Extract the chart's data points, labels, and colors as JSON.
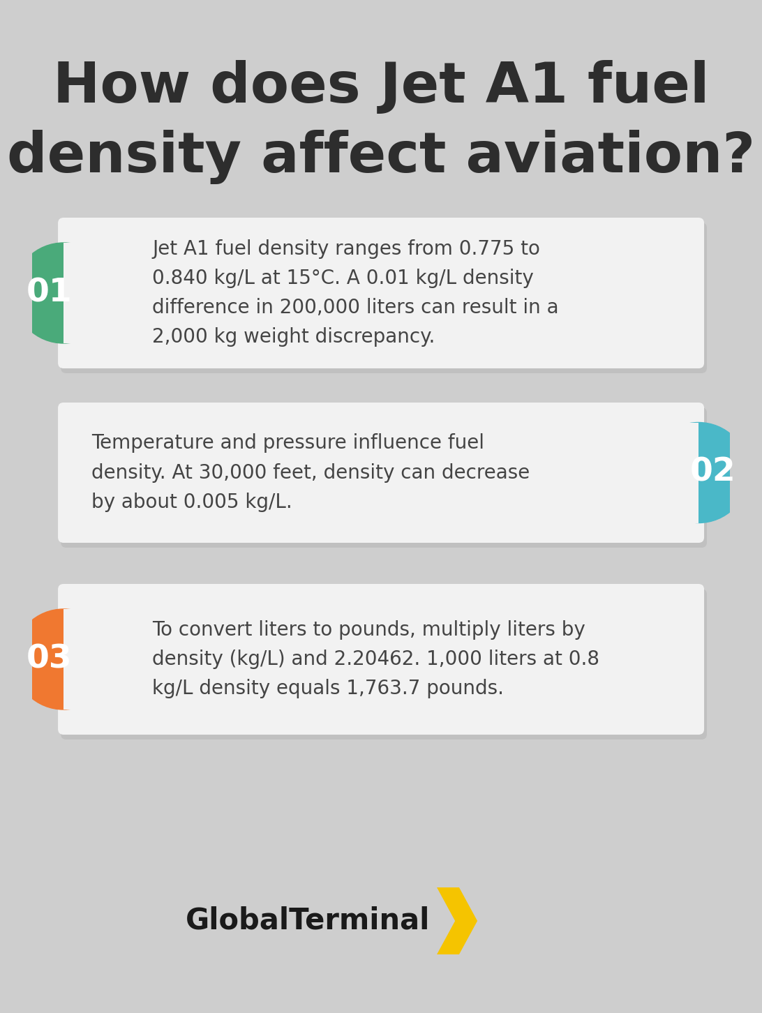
{
  "title_line1": "How does Jet A1 fuel",
  "title_line2": "density affect aviation?",
  "title_color": "#2d2d2d",
  "background_color": "#cecece",
  "card_color": "#f2f2f2",
  "card_shadow_color": "#b0b0b0",
  "items": [
    {
      "number": "01",
      "badge_color": "#4aaa7a",
      "badge_side": "left",
      "text": "Jet A1 fuel density ranges from 0.775 to\n0.840 kg/L at 15°C. A 0.01 kg/L density\ndifference in 200,000 liters can result in a\n2,000 kg weight discrepancy."
    },
    {
      "number": "02",
      "badge_color": "#4ab8c8",
      "badge_side": "right",
      "text": "Temperature and pressure influence fuel\ndensity. At 30,000 feet, density can decrease\nby about 0.005 kg/L."
    },
    {
      "number": "03",
      "badge_color": "#f07830",
      "badge_side": "left",
      "text": "To convert liters to pounds, multiply liters by\ndensity (kg/L) and 2.20462. 1,000 liters at 0.8\nkg/L density equals 1,763.7 pounds."
    }
  ],
  "logo_text": "GlobalTerminal",
  "logo_arrow_color": "#f5c400",
  "text_color": "#444444",
  "number_color": "#ffffff",
  "figsize": [
    10.0,
    14.32
  ]
}
